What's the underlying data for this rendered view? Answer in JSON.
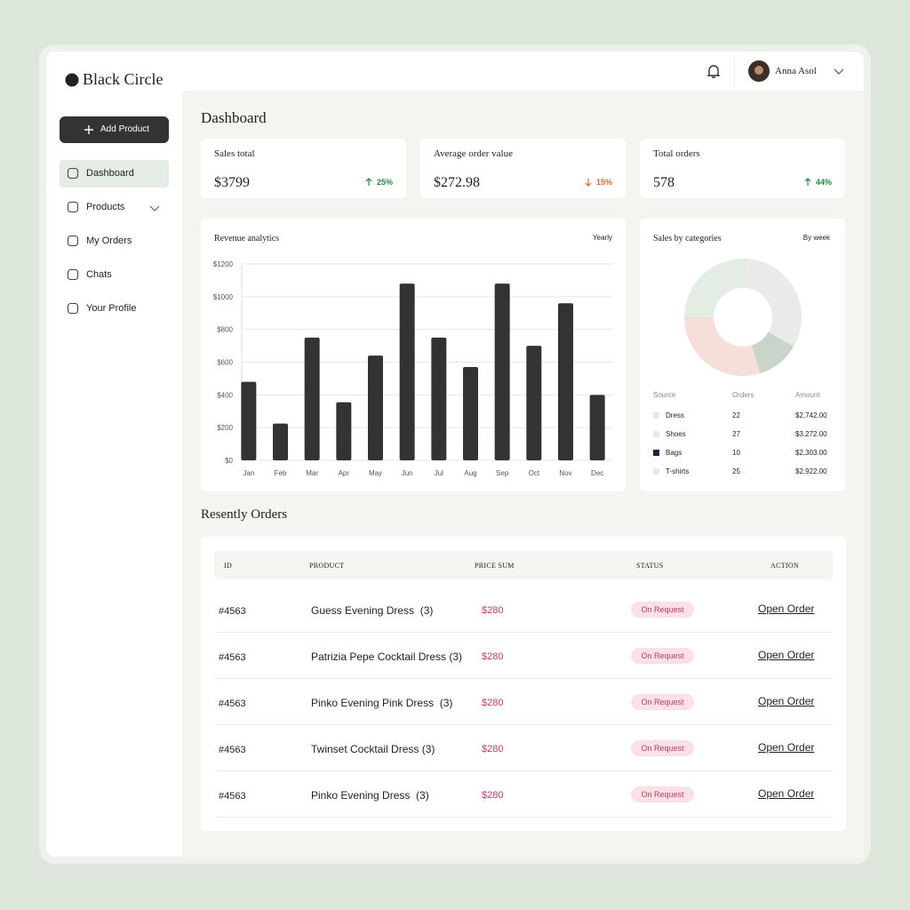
{
  "brand": "Black Circle",
  "user": {
    "name": "Anna Asol"
  },
  "sidebar": {
    "button": "Add Product",
    "nav": [
      "Dashboard",
      "Products",
      "My Orders",
      "Chats",
      "Your Profile"
    ]
  },
  "page_title": "Dashboard",
  "stats": [
    {
      "label": "Sales total",
      "value": "$3799",
      "change": "25%",
      "direction": "up"
    },
    {
      "label": "Average order value",
      "value": "$272.98",
      "change": "15%",
      "direction": "down"
    },
    {
      "label": "Total orders",
      "value": "578",
      "change": "44%",
      "direction": "up"
    }
  ],
  "chart_data": {
    "type": "bar",
    "title": "Revenue analytics",
    "period": "Yearly",
    "categories": [
      "Jan",
      "Feb",
      "Mar",
      "Apr",
      "May",
      "Jun",
      "Jul",
      "Aug",
      "Sep",
      "Oct",
      "Nov",
      "Dec"
    ],
    "values": [
      480,
      225,
      750,
      355,
      640,
      1080,
      750,
      570,
      1080,
      700,
      960,
      400
    ],
    "color": "#333333",
    "ylim": [
      0,
      1200
    ],
    "yticks": [
      {
        "value": 0,
        "label": "$0"
      },
      {
        "value": 200,
        "label": "$200"
      },
      {
        "value": 400,
        "label": "$400"
      },
      {
        "value": 600,
        "label": "$600"
      },
      {
        "value": 800,
        "label": "$800"
      },
      {
        "value": 1000,
        "label": "$1000"
      },
      {
        "value": 1200,
        "label": "$1200"
      }
    ],
    "grid": true
  },
  "categories_chart": {
    "type": "donut",
    "title": "Sales by categories",
    "period": "By week",
    "columns": [
      "Source",
      "Orders",
      "Amount"
    ],
    "rows": [
      {
        "source": "Dress",
        "orders": 22,
        "amount": "$2,742.00",
        "color": "#e3ede3",
        "legend_color": "#e8e8e6"
      },
      {
        "source": "Shoes",
        "orders": 27,
        "amount": "$3,272.00",
        "color": "#ebeae8",
        "legend_color": "#e8e8e6"
      },
      {
        "source": "Bags",
        "orders": 10,
        "amount": "$2,303.00",
        "color": "#c9d5c8",
        "legend_color": "#1f2347"
      },
      {
        "source": "T-shirts",
        "orders": 25,
        "amount": "$2,922.00",
        "color": "#f5dfd8",
        "legend_color": "#e8e8e6"
      }
    ]
  },
  "orders": {
    "title": "Resently Orders",
    "columns": [
      "ID",
      "PRODUCT",
      "PRICE SUM",
      "STATUS",
      "ACTION"
    ],
    "rows": [
      [
        "#4563",
        "Guess Evening Dress  (3)",
        "$280",
        "On Request",
        "Open Order"
      ],
      [
        "#4563",
        "Patrizia Pepe Cocktail Dress (3)",
        "$280",
        "On Request",
        "Open Order"
      ],
      [
        "#4563",
        "Pinko Evening Pink Dress  (3)",
        "$280",
        "On Request",
        "Open Order"
      ],
      [
        "#4563",
        "Twinset Cocktail Dress (3)",
        "$280",
        "On Request",
        "Open Order"
      ],
      [
        "#4563",
        "Pinko Evening Dress  (3)",
        "$280",
        "On Request",
        "Open Order"
      ]
    ]
  }
}
